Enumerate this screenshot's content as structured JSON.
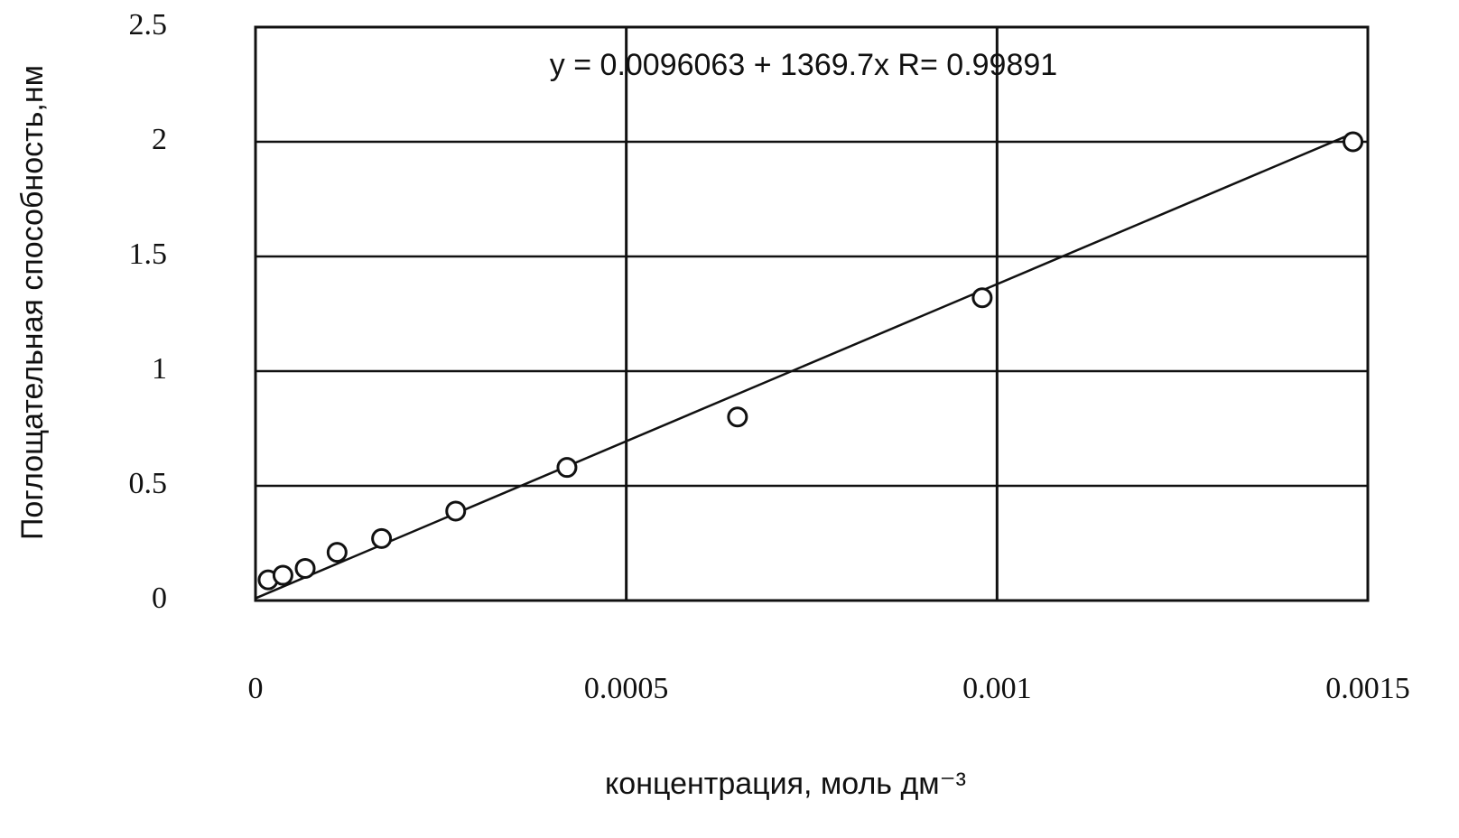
{
  "chart_data": {
    "type": "scatter",
    "annotation": "y = 0.0096063 + 1369.7x R= 0.99891",
    "x_label": "концентрация, моль дм⁻³",
    "y_label": "Поглощательная способность,нм",
    "x": [
      1.7e-05,
      3.7e-05,
      6.7e-05,
      0.00011,
      0.00017,
      0.00027,
      0.00042,
      0.00065,
      0.00098,
      0.00148
    ],
    "values": [
      0.09,
      0.11,
      0.14,
      0.21,
      0.27,
      0.39,
      0.58,
      0.8,
      1.32,
      2.0
    ],
    "color": "#111111",
    "fit": {
      "intercept": 0.0096063,
      "slope": 1369.7
    },
    "xlim": [
      0,
      0.0015
    ],
    "xticks": [
      0,
      0.0005,
      0.001,
      0.0015
    ],
    "ylim": [
      0,
      2.5
    ],
    "yticks": [
      0,
      0.5,
      1,
      1.5,
      2,
      2.5
    ],
    "grid": true
  }
}
